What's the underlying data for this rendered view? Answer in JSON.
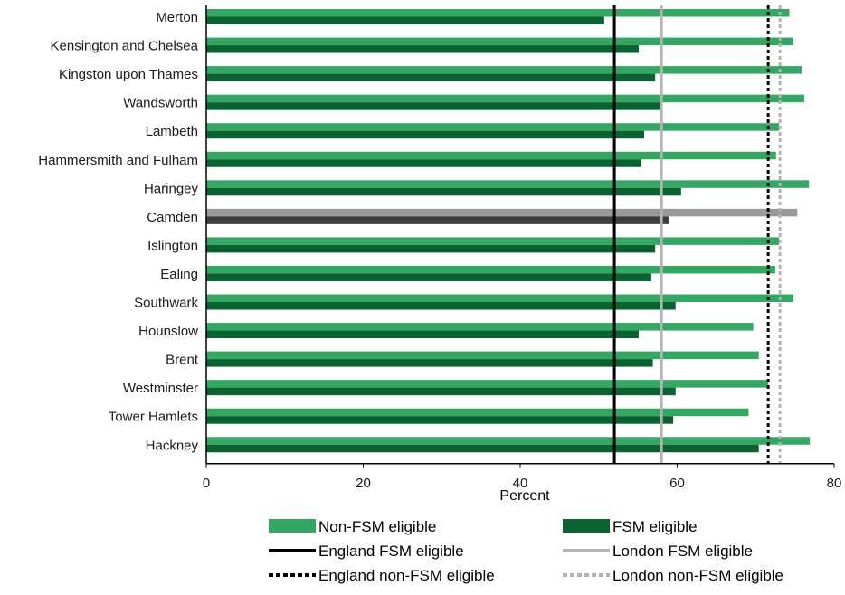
{
  "chart_data": {
    "type": "bar",
    "orientation": "horizontal",
    "categories": [
      "Merton",
      "Kensington and Chelsea",
      "Kingston upon Thames",
      "Wandsworth",
      "Lambeth",
      "Hammersmith and Fulham",
      "Haringey",
      "Camden",
      "Islington",
      "Ealing",
      "Southwark",
      "Hounslow",
      "Brent",
      "Westminster",
      "Tower Hamlets",
      "Hackney"
    ],
    "series": [
      {
        "name": "Non-FSM eligible",
        "values": [
          74.3,
          74.8,
          75.9,
          76.2,
          73.0,
          72.6,
          76.8,
          75.3,
          73.0,
          72.5,
          74.8,
          69.7,
          70.4,
          71.6,
          69.1,
          76.9
        ]
      },
      {
        "name": "FSM eligible",
        "values": [
          50.7,
          55.1,
          57.2,
          57.8,
          55.8,
          55.4,
          60.5,
          58.9,
          57.2,
          56.7,
          59.8,
          55.1,
          56.9,
          59.8,
          59.5,
          70.4
        ]
      }
    ],
    "highlight_category": "Camden",
    "reference_lines": [
      {
        "name": "England FSM eligible",
        "value": 52.0,
        "style": "solid",
        "color": "#000000"
      },
      {
        "name": "London FSM eligible",
        "value": 58.0,
        "style": "solid",
        "color": "#b3b3b3"
      },
      {
        "name": "England non-FSM eligible",
        "value": 71.6,
        "style": "dotted",
        "color": "#000000"
      },
      {
        "name": "London non-FSM eligible",
        "value": 73.1,
        "style": "dotted",
        "color": "#b3b3b3"
      }
    ],
    "xlabel": "Percent",
    "xlim": [
      0,
      80
    ],
    "xticks": [
      "0",
      "20",
      "40",
      "60",
      "80"
    ],
    "grid": false,
    "legend_position": "bottom",
    "legend": [
      "Non-FSM eligible",
      "FSM eligible",
      "England FSM eligible",
      "London FSM eligible",
      "England non-FSM eligible",
      "London non-FSM eligible"
    ]
  },
  "colors": {
    "non_fsm": "#34a862",
    "fsm": "#0b6231",
    "highlight_non_fsm": "#999999",
    "highlight_fsm": "#3d3d3d",
    "england_line": "#000000",
    "london_line": "#b3b3b3"
  }
}
